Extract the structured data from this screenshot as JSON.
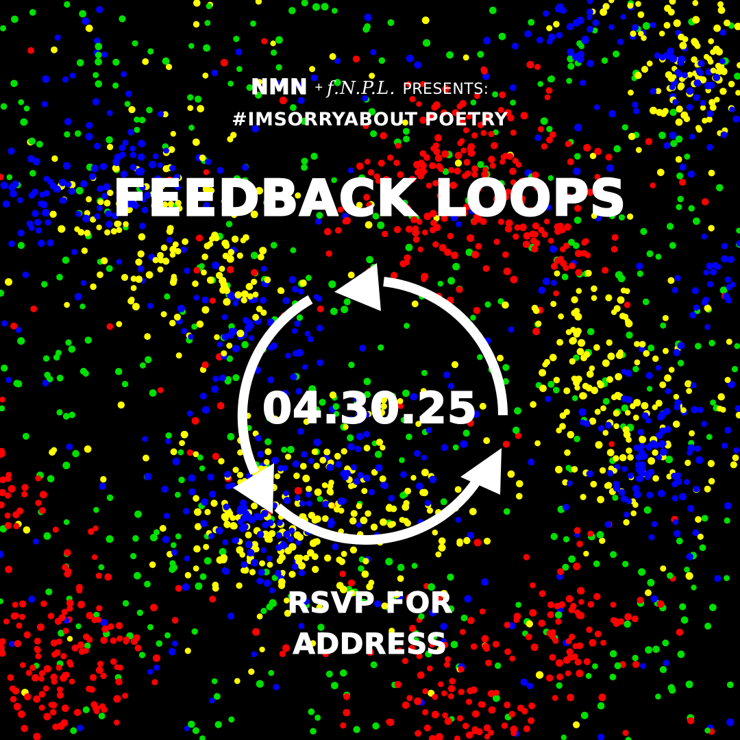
{
  "poster": {
    "presenters": {
      "brand_1": "NMN",
      "joiner": "+",
      "brand_2": "f.N.P.L.",
      "presents": "PRESENTS:"
    },
    "series": "#IMSORRYABOUT POETRY",
    "title": "FEEDBACK LOOPS",
    "date": "04.30.25",
    "rsvp_line_1": "RSVP FOR",
    "rsvp_line_2": "ADDRESS"
  },
  "icons": {
    "cycle": "circular-arrows-icon"
  },
  "colors": {
    "background": "#000000",
    "text": "#ffffff",
    "dot_red": "#ff0000",
    "dot_green": "#00e000",
    "dot_blue": "#0000ff",
    "dot_yellow": "#ffff00"
  }
}
